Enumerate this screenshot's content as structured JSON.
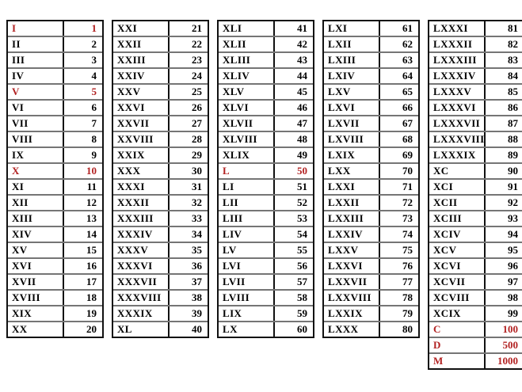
{
  "colors": {
    "highlight": "#b22222",
    "text": "#000000",
    "border": "#111111",
    "row_divider": "#757575",
    "background": "#ffffff"
  },
  "tables": [
    {
      "range": "1-20",
      "rows": [
        {
          "roman": "I",
          "value": "1",
          "red": true
        },
        {
          "roman": "II",
          "value": "2",
          "red": false
        },
        {
          "roman": "III",
          "value": "3",
          "red": false
        },
        {
          "roman": "IV",
          "value": "4",
          "red": false
        },
        {
          "roman": "V",
          "value": "5",
          "red": true
        },
        {
          "roman": "VI",
          "value": "6",
          "red": false
        },
        {
          "roman": "VII",
          "value": "7",
          "red": false
        },
        {
          "roman": "VIII",
          "value": "8",
          "red": false
        },
        {
          "roman": "IX",
          "value": "9",
          "red": false
        },
        {
          "roman": "X",
          "value": "10",
          "red": true
        },
        {
          "roman": "XI",
          "value": "11",
          "red": false
        },
        {
          "roman": "XII",
          "value": "12",
          "red": false
        },
        {
          "roman": "XIII",
          "value": "13",
          "red": false
        },
        {
          "roman": "XIV",
          "value": "14",
          "red": false
        },
        {
          "roman": "XV",
          "value": "15",
          "red": false
        },
        {
          "roman": "XVI",
          "value": "16",
          "red": false
        },
        {
          "roman": "XVII",
          "value": "17",
          "red": false
        },
        {
          "roman": "XVIII",
          "value": "18",
          "red": false
        },
        {
          "roman": "XIX",
          "value": "19",
          "red": false
        },
        {
          "roman": "XX",
          "value": "20",
          "red": false
        }
      ]
    },
    {
      "range": "21-40",
      "rows": [
        {
          "roman": "XXI",
          "value": "21",
          "red": false
        },
        {
          "roman": "XXII",
          "value": "22",
          "red": false
        },
        {
          "roman": "XXIII",
          "value": "23",
          "red": false
        },
        {
          "roman": "XXIV",
          "value": "24",
          "red": false
        },
        {
          "roman": "XXV",
          "value": "25",
          "red": false
        },
        {
          "roman": "XXVI",
          "value": "26",
          "red": false
        },
        {
          "roman": "XXVII",
          "value": "27",
          "red": false
        },
        {
          "roman": "XXVIII",
          "value": "28",
          "red": false
        },
        {
          "roman": "XXIX",
          "value": "29",
          "red": false
        },
        {
          "roman": "XXX",
          "value": "30",
          "red": false
        },
        {
          "roman": "XXXI",
          "value": "31",
          "red": false
        },
        {
          "roman": "XXXII",
          "value": "32",
          "red": false
        },
        {
          "roman": "XXXIII",
          "value": "33",
          "red": false
        },
        {
          "roman": "XXXIV",
          "value": "34",
          "red": false
        },
        {
          "roman": "XXXV",
          "value": "35",
          "red": false
        },
        {
          "roman": "XXXVI",
          "value": "36",
          "red": false
        },
        {
          "roman": "XXXVII",
          "value": "37",
          "red": false
        },
        {
          "roman": "XXXVIII",
          "value": "38",
          "red": false
        },
        {
          "roman": "XXXIX",
          "value": "39",
          "red": false
        },
        {
          "roman": "XL",
          "value": "40",
          "red": false
        }
      ]
    },
    {
      "range": "41-60",
      "rows": [
        {
          "roman": "XLI",
          "value": "41",
          "red": false
        },
        {
          "roman": "XLII",
          "value": "42",
          "red": false
        },
        {
          "roman": "XLIII",
          "value": "43",
          "red": false
        },
        {
          "roman": "XLIV",
          "value": "44",
          "red": false
        },
        {
          "roman": "XLV",
          "value": "45",
          "red": false
        },
        {
          "roman": "XLVI",
          "value": "46",
          "red": false
        },
        {
          "roman": "XLVII",
          "value": "47",
          "red": false
        },
        {
          "roman": "XLVIII",
          "value": "48",
          "red": false
        },
        {
          "roman": "XLIX",
          "value": "49",
          "red": false
        },
        {
          "roman": "L",
          "value": "50",
          "red": true
        },
        {
          "roman": "LI",
          "value": "51",
          "red": false
        },
        {
          "roman": "LII",
          "value": "52",
          "red": false
        },
        {
          "roman": "LIII",
          "value": "53",
          "red": false
        },
        {
          "roman": "LIV",
          "value": "54",
          "red": false
        },
        {
          "roman": "LV",
          "value": "55",
          "red": false
        },
        {
          "roman": "LVI",
          "value": "56",
          "red": false
        },
        {
          "roman": "LVII",
          "value": "57",
          "red": false
        },
        {
          "roman": "LVIII",
          "value": "58",
          "red": false
        },
        {
          "roman": "LIX",
          "value": "59",
          "red": false
        },
        {
          "roman": "LX",
          "value": "60",
          "red": false
        }
      ]
    },
    {
      "range": "61-80",
      "rows": [
        {
          "roman": "LXI",
          "value": "61",
          "red": false
        },
        {
          "roman": "LXII",
          "value": "62",
          "red": false
        },
        {
          "roman": "LXIII",
          "value": "63",
          "red": false
        },
        {
          "roman": "LXIV",
          "value": "64",
          "red": false
        },
        {
          "roman": "LXV",
          "value": "65",
          "red": false
        },
        {
          "roman": "LXVI",
          "value": "66",
          "red": false
        },
        {
          "roman": "LXVII",
          "value": "67",
          "red": false
        },
        {
          "roman": "LXVIII",
          "value": "68",
          "red": false
        },
        {
          "roman": "LXIX",
          "value": "69",
          "red": false
        },
        {
          "roman": "LXX",
          "value": "70",
          "red": false
        },
        {
          "roman": "LXXI",
          "value": "71",
          "red": false
        },
        {
          "roman": "LXXII",
          "value": "72",
          "red": false
        },
        {
          "roman": "LXXIII",
          "value": "73",
          "red": false
        },
        {
          "roman": "LXXIV",
          "value": "74",
          "red": false
        },
        {
          "roman": "LXXV",
          "value": "75",
          "red": false
        },
        {
          "roman": "LXXVI",
          "value": "76",
          "red": false
        },
        {
          "roman": "LXXVII",
          "value": "77",
          "red": false
        },
        {
          "roman": "LXXVIII",
          "value": "78",
          "red": false
        },
        {
          "roman": "LXXIX",
          "value": "79",
          "red": false
        },
        {
          "roman": "LXXX",
          "value": "80",
          "red": false
        }
      ]
    },
    {
      "range": "81-1000",
      "rows": [
        {
          "roman": "LXXXI",
          "value": "81",
          "red": false
        },
        {
          "roman": "LXXXII",
          "value": "82",
          "red": false
        },
        {
          "roman": "LXXXIII",
          "value": "83",
          "red": false
        },
        {
          "roman": "LXXXIV",
          "value": "84",
          "red": false
        },
        {
          "roman": "LXXXV",
          "value": "85",
          "red": false
        },
        {
          "roman": "LXXXVI",
          "value": "86",
          "red": false
        },
        {
          "roman": "LXXXVII",
          "value": "87",
          "red": false
        },
        {
          "roman": "LXXXVIII",
          "value": "88",
          "red": false
        },
        {
          "roman": "LXXXIX",
          "value": "89",
          "red": false
        },
        {
          "roman": "XC",
          "value": "90",
          "red": false
        },
        {
          "roman": "XCI",
          "value": "91",
          "red": false
        },
        {
          "roman": "XCII",
          "value": "92",
          "red": false
        },
        {
          "roman": "XCIII",
          "value": "93",
          "red": false
        },
        {
          "roman": "XCIV",
          "value": "94",
          "red": false
        },
        {
          "roman": "XCV",
          "value": "95",
          "red": false
        },
        {
          "roman": "XCVI",
          "value": "96",
          "red": false
        },
        {
          "roman": "XCVII",
          "value": "97",
          "red": false
        },
        {
          "roman": "XCVIII",
          "value": "98",
          "red": false
        },
        {
          "roman": "XCIX",
          "value": "99",
          "red": false
        },
        {
          "roman": "C",
          "value": "100",
          "red": true
        },
        {
          "roman": "D",
          "value": "500",
          "red": true
        },
        {
          "roman": "M",
          "value": "1000",
          "red": true
        }
      ]
    }
  ]
}
